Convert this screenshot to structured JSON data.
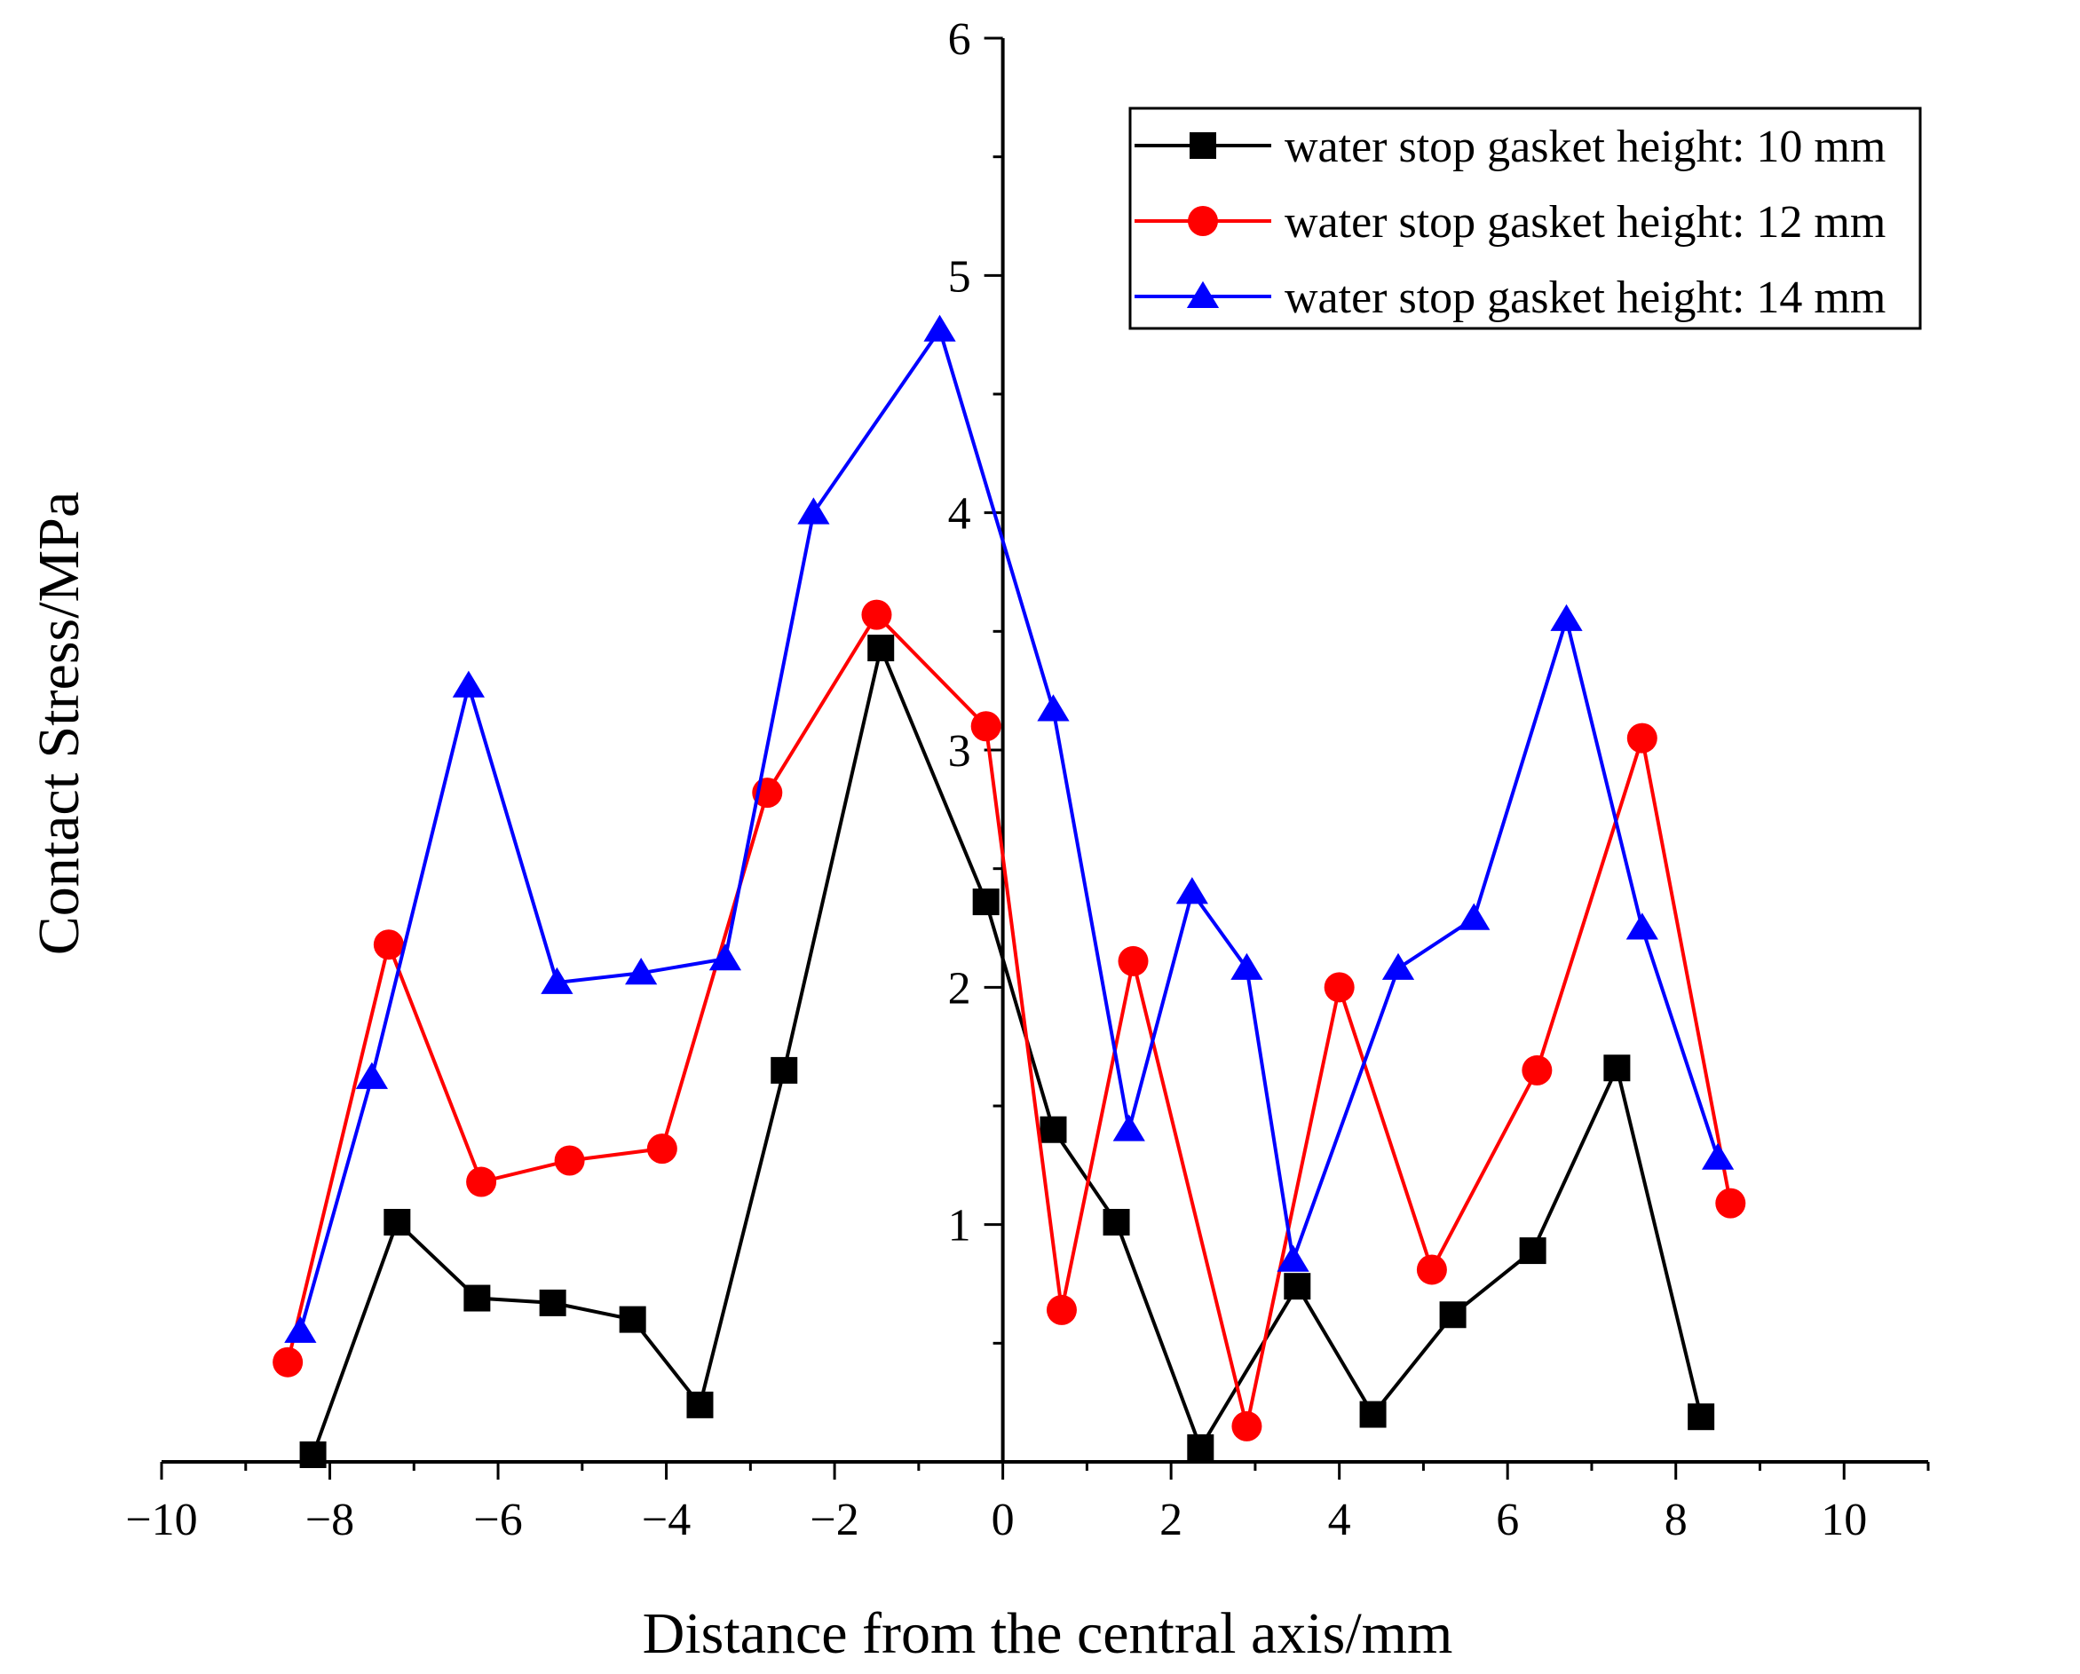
{
  "chart_data": {
    "type": "line",
    "xlabel": "Distance from the central axis/mm",
    "ylabel": "Contact Stress/MPa",
    "xlim": [
      -10,
      11
    ],
    "ylim": [
      0,
      6
    ],
    "x_ticks": [
      -10,
      -8,
      -6,
      -4,
      -2,
      0,
      2,
      4,
      6,
      8,
      10
    ],
    "x_tick_labels": [
      "−10",
      "−8",
      "−6",
      "−4",
      "−2",
      "0",
      "2",
      "4",
      "6",
      "8",
      "10"
    ],
    "y_ticks": [
      1,
      2,
      3,
      4,
      5,
      6
    ],
    "y_tick_labels": [
      "1",
      "2",
      "3",
      "4",
      "5",
      "6"
    ],
    "x_minor_step": 1,
    "y_minor_step": 0.5,
    "y_axis_at_x": 0,
    "grid": false,
    "legend_position": "top-right",
    "series": [
      {
        "name": "water stop gasket height: 10 mm",
        "color": "#000000",
        "marker": "square",
        "x": [
          -8.2,
          -7.2,
          -6.25,
          -5.35,
          -4.4,
          -3.6,
          -2.6,
          -1.45,
          -0.2,
          0.6,
          1.35,
          2.35,
          3.5,
          4.4,
          5.35,
          6.3,
          7.3,
          8.3
        ],
        "y": [
          0.03,
          1.01,
          0.69,
          0.67,
          0.6,
          0.24,
          1.65,
          3.43,
          2.36,
          1.4,
          1.01,
          0.06,
          0.74,
          0.2,
          0.62,
          0.89,
          1.66,
          0.19
        ]
      },
      {
        "name": "water stop gasket height: 12 mm",
        "color": "#ff0000",
        "marker": "circle",
        "x": [
          -8.5,
          -7.3,
          -6.2,
          -5.15,
          -4.05,
          -2.8,
          -1.5,
          -0.2,
          0.7,
          1.55,
          2.9,
          4.0,
          5.1,
          6.35,
          7.6,
          8.65
        ],
        "y": [
          0.42,
          2.18,
          1.18,
          1.27,
          1.32,
          2.82,
          3.57,
          3.1,
          0.64,
          2.11,
          0.15,
          2.0,
          0.81,
          1.65,
          3.05,
          1.09
        ]
      },
      {
        "name": "water stop gasket height: 14 mm",
        "color": "#0000ff",
        "marker": "triangle",
        "x": [
          -8.35,
          -7.5,
          -6.35,
          -5.3,
          -4.3,
          -3.3,
          -2.25,
          -0.75,
          0.6,
          1.5,
          2.25,
          2.9,
          3.45,
          4.7,
          5.6,
          6.7,
          7.6,
          8.5
        ],
        "y": [
          0.55,
          1.62,
          3.27,
          2.02,
          2.06,
          2.12,
          4.0,
          4.77,
          3.17,
          1.4,
          2.4,
          2.08,
          0.85,
          2.08,
          2.29,
          3.55,
          2.25,
          1.28
        ]
      }
    ]
  }
}
